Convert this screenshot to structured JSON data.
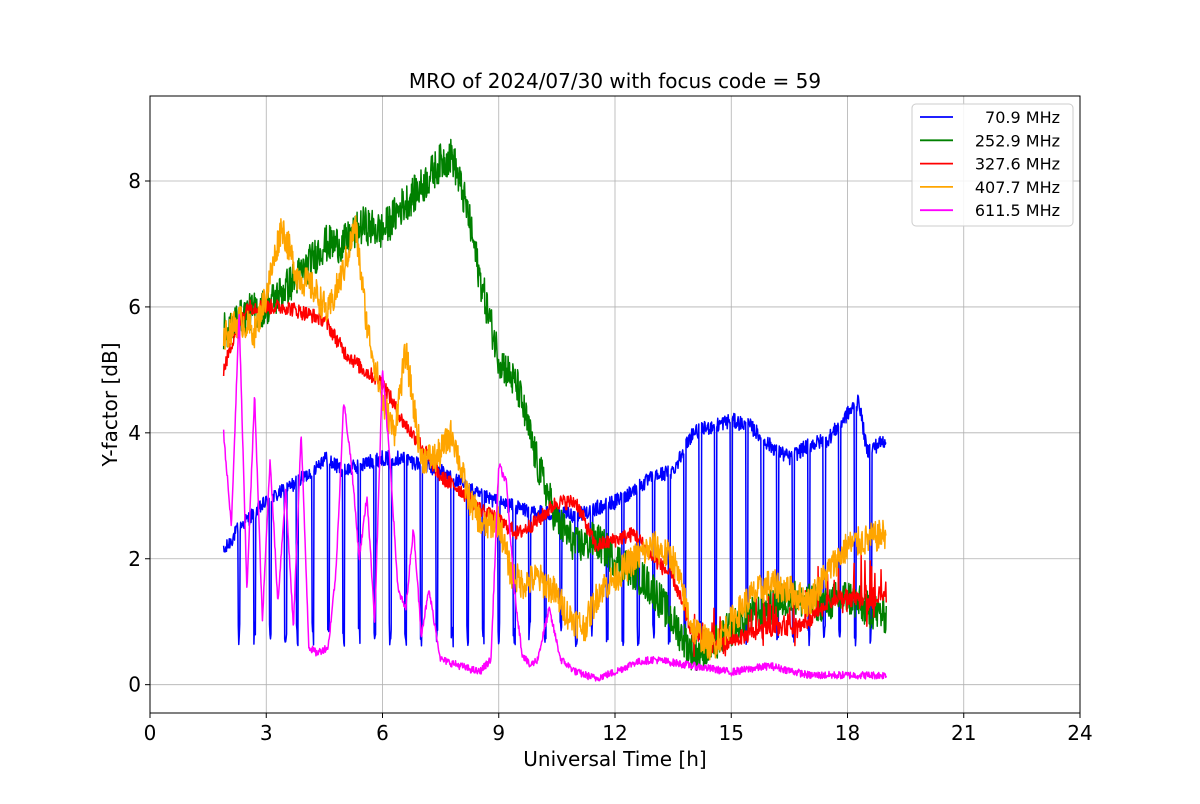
{
  "chart_data": {
    "type": "line",
    "title": "MRO of 2024/07/30 with focus code = 59",
    "xlabel": "Universal Time [h]",
    "ylabel": "Y-factor [dB]",
    "xlim": [
      0,
      24
    ],
    "ylim": [
      -0.45,
      9.35
    ],
    "xticks": [
      0,
      3,
      6,
      9,
      12,
      15,
      18,
      21,
      24
    ],
    "yticks": [
      0,
      2,
      4,
      6,
      8
    ],
    "grid": true,
    "legend_position": "top-right",
    "series": [
      {
        "name": " 70.9 MHz",
        "color": "#0000ff",
        "noise": 0.12,
        "x": [
          1.9,
          2.3,
          3.0,
          3.5,
          4.0,
          4.5,
          5.0,
          5.5,
          6.0,
          6.5,
          7.0,
          7.5,
          8.0,
          8.5,
          9.0,
          9.5,
          10.0,
          10.5,
          11.0,
          11.5,
          12.0,
          12.5,
          13.0,
          13.5,
          14.0,
          14.5,
          15.0,
          15.5,
          16.0,
          16.5,
          17.0,
          17.5,
          18.0,
          18.3,
          18.5,
          19.0
        ],
        "y": [
          2.1,
          2.5,
          2.9,
          3.1,
          3.3,
          3.6,
          3.4,
          3.5,
          3.6,
          3.6,
          3.5,
          3.4,
          3.2,
          3.0,
          2.9,
          2.8,
          2.75,
          2.7,
          2.7,
          2.8,
          2.9,
          3.1,
          3.3,
          3.4,
          4.0,
          4.1,
          4.2,
          4.1,
          3.8,
          3.6,
          3.8,
          3.9,
          4.3,
          4.5,
          3.7,
          3.9
        ],
        "dips": [
          2.3,
          2.7,
          3.1,
          3.5,
          3.8,
          4.2,
          4.6,
          5.0,
          5.4,
          5.8,
          6.2,
          6.6,
          7.0,
          7.4,
          7.8,
          8.2,
          8.6,
          9.0,
          9.4,
          9.8,
          10.2,
          10.6,
          11.0,
          11.4,
          11.8,
          12.2,
          12.6,
          13.0,
          13.4,
          13.8,
          14.2,
          14.6,
          15.0,
          15.4,
          15.8,
          16.2,
          16.6,
          17.0,
          17.4,
          17.8,
          18.2,
          18.6
        ],
        "dip_min": 0.6
      },
      {
        "name": "252.9 MHz",
        "color": "#008000",
        "noise": 0.3,
        "x": [
          1.9,
          2.5,
          3.0,
          3.5,
          4.0,
          4.5,
          5.0,
          5.5,
          6.0,
          6.5,
          7.0,
          7.5,
          7.8,
          8.2,
          8.5,
          9.0,
          9.5,
          10.0,
          10.5,
          11.0,
          11.5,
          12.0,
          12.5,
          13.0,
          13.5,
          14.0,
          14.5,
          15.0,
          15.5,
          16.0,
          16.5,
          17.0,
          17.5,
          18.0,
          18.5,
          19.0
        ],
        "y": [
          5.6,
          5.9,
          6.0,
          6.3,
          6.6,
          7.0,
          7.0,
          7.3,
          7.2,
          7.6,
          7.9,
          8.3,
          8.4,
          7.5,
          6.5,
          5.2,
          4.7,
          3.5,
          2.6,
          2.2,
          2.3,
          2.0,
          1.8,
          1.5,
          1.0,
          0.5,
          0.6,
          0.9,
          1.1,
          1.2,
          1.4,
          1.3,
          1.3,
          1.4,
          1.2,
          1.1
        ]
      },
      {
        "name": "327.6 MHz",
        "color": "#ff0000",
        "noise": 0.12,
        "x": [
          1.9,
          2.2,
          2.5,
          3.0,
          3.5,
          4.0,
          4.5,
          5.0,
          5.5,
          6.0,
          6.5,
          7.0,
          7.5,
          8.0,
          8.5,
          9.0,
          9.5,
          10.0,
          10.5,
          11.0,
          11.5,
          12.0,
          12.5,
          13.0,
          13.5,
          14.0,
          14.5,
          15.0,
          15.5,
          16.0,
          16.5,
          17.0,
          17.5,
          18.0,
          18.5,
          19.0
        ],
        "y": [
          5.0,
          5.6,
          6.0,
          6.0,
          6.0,
          5.9,
          5.8,
          5.3,
          5.0,
          4.8,
          4.2,
          3.8,
          3.3,
          3.1,
          2.8,
          2.6,
          2.4,
          2.6,
          2.9,
          2.9,
          2.2,
          2.3,
          2.4,
          2.0,
          1.7,
          0.8,
          0.6,
          0.7,
          0.8,
          0.9,
          0.9,
          1.0,
          1.3,
          1.4,
          1.3,
          1.4
        ],
        "spike_from": 14,
        "spike_amp": 0.45
      },
      {
        "name": "407.7 MHz",
        "color": "#ffa500",
        "noise": 0.25,
        "x": [
          1.9,
          2.3,
          2.7,
          3.0,
          3.4,
          3.8,
          4.2,
          4.6,
          5.0,
          5.3,
          5.6,
          6.0,
          6.3,
          6.6,
          7.0,
          7.4,
          7.8,
          8.2,
          8.6,
          9.0,
          9.3,
          9.6,
          10.0,
          10.4,
          10.8,
          11.2,
          11.6,
          12.0,
          12.5,
          13.0,
          13.5,
          14.0,
          14.5,
          15.0,
          15.5,
          16.0,
          16.5,
          17.0,
          17.5,
          18.0,
          18.5,
          19.0
        ],
        "y": [
          5.5,
          5.8,
          5.6,
          6.2,
          7.3,
          6.5,
          6.3,
          5.9,
          6.6,
          7.3,
          5.7,
          4.5,
          4.0,
          5.3,
          3.6,
          3.6,
          4.0,
          3.0,
          2.5,
          2.6,
          1.8,
          1.6,
          1.7,
          1.5,
          1.1,
          0.9,
          1.5,
          1.7,
          2.0,
          2.2,
          2.0,
          0.9,
          0.6,
          1.0,
          1.4,
          1.6,
          1.5,
          1.3,
          1.8,
          2.2,
          2.3,
          2.4
        ]
      },
      {
        "name": "611.5 MHz",
        "color": "#ff00ff",
        "noise": 0.06,
        "x": [
          1.9,
          2.1,
          2.3,
          2.5,
          2.7,
          2.9,
          3.1,
          3.3,
          3.5,
          3.7,
          3.9,
          4.1,
          4.3,
          4.6,
          4.8,
          5.0,
          5.2,
          5.4,
          5.6,
          5.8,
          6.0,
          6.2,
          6.4,
          6.6,
          6.8,
          7.0,
          7.2,
          7.5,
          8.0,
          8.5,
          8.8,
          9.0,
          9.2,
          9.4,
          9.6,
          9.8,
          10.0,
          10.3,
          10.6,
          11.0,
          11.5,
          12.0,
          12.5,
          13.0,
          13.5,
          14.0,
          15.0,
          16.0,
          17.0,
          18.0,
          19.0
        ],
        "y": [
          4.0,
          2.5,
          5.9,
          1.5,
          4.6,
          1.0,
          3.6,
          1.3,
          3.1,
          0.9,
          4.0,
          0.6,
          0.5,
          0.6,
          1.8,
          4.5,
          3.5,
          2.0,
          3.0,
          1.0,
          5.0,
          3.5,
          1.5,
          1.2,
          2.5,
          0.8,
          1.5,
          0.4,
          0.3,
          0.2,
          0.4,
          3.5,
          3.2,
          1.5,
          0.5,
          0.3,
          0.4,
          1.2,
          0.4,
          0.2,
          0.1,
          0.2,
          0.35,
          0.4,
          0.35,
          0.3,
          0.2,
          0.3,
          0.15,
          0.15,
          0.15
        ]
      }
    ]
  }
}
